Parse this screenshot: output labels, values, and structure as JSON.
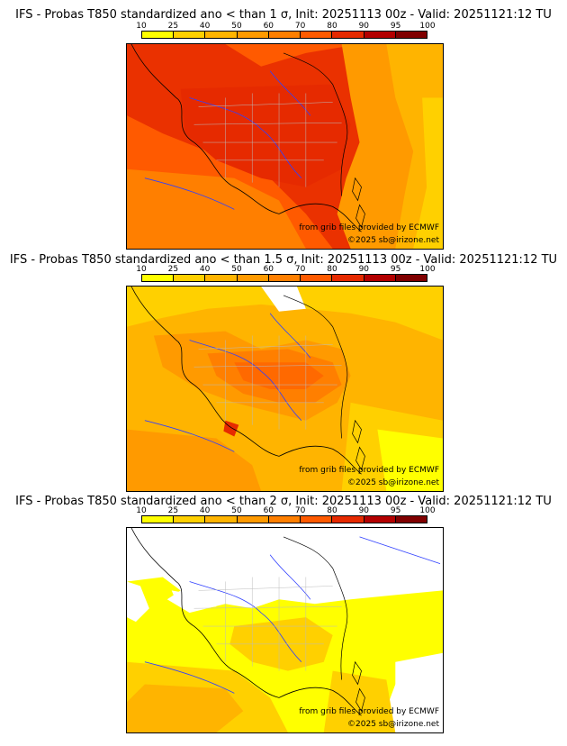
{
  "legend": {
    "ticks": [
      "10",
      "25",
      "40",
      "50",
      "60",
      "70",
      "80",
      "90",
      "95",
      "100"
    ],
    "colors": [
      "#ffff00",
      "#ffd000",
      "#ffb400",
      "#ff9a00",
      "#ff7f00",
      "#ff5a00",
      "#e62a00",
      "#b30000",
      "#800000"
    ]
  },
  "panels": [
    {
      "title": "IFS - Probas T850  standardized ano < than 1 σ, Init: 20251113 00z - Valid: 20251121:12 TU",
      "credit_source": "from grib files provided by ECMWF",
      "credit_copyright": "©2025 sb@irizone.net"
    },
    {
      "title": "IFS - Probas T850  standardized ano < than 1.5 σ, Init: 20251113 00z - Valid: 20251121:12 TU",
      "credit_source": "from grib files provided by ECMWF",
      "credit_copyright": "©2025 sb@irizone.net"
    },
    {
      "title": "IFS - Probas T850  standardized ano < than 2 σ, Init: 20251113 00z - Valid: 20251121:12 TU",
      "credit_source": "from grib files provided by ECMWF",
      "credit_copyright": "©2025 sb@irizone.net"
    }
  ]
}
